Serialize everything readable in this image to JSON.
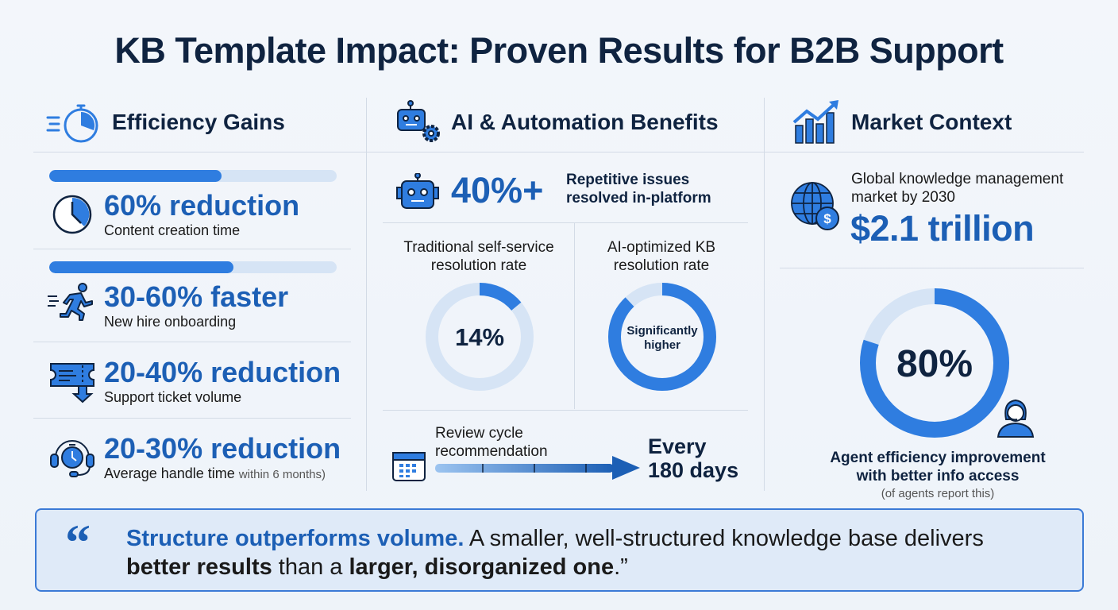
{
  "title": "KB Template Impact: Proven Results for B2B Support",
  "colors": {
    "accent": "#2f7de0",
    "accent_dark": "#1c5fb5",
    "track": "#d6e4f5",
    "text": "#0f2340"
  },
  "efficiency": {
    "title": "Efficiency Gains",
    "icon": "stopwatch-icon",
    "items": [
      {
        "value": "60% reduction",
        "label": "Content creation time",
        "icon": "clock-icon",
        "progress": 0.6
      },
      {
        "value": "30-60% faster",
        "label": "New hire onboarding",
        "icon": "running-person-icon",
        "progress": 0.64
      },
      {
        "value": "20-40% reduction",
        "label": "Support ticket volume",
        "icon": "ticket-down-icon"
      },
      {
        "value": "20-30% reduction",
        "label": "Average handle time",
        "note": "within 6 months)",
        "icon": "headset-timer-icon"
      }
    ]
  },
  "ai": {
    "title": "AI & Automation Benefits",
    "icon": "robot-gear-icon",
    "headline_value": "40%+",
    "headline_label_1": "Repetitive issues",
    "headline_label_2": "resolved in-platform",
    "traditional": {
      "label_1": "Traditional self-service",
      "label_2": "resolution rate",
      "value_text": "14%",
      "value": 0.14
    },
    "optimized": {
      "label_1": "AI-optimized KB",
      "label_2": "resolution rate",
      "center_1": "Significantly",
      "center_2": "higher",
      "value": 0.88
    },
    "review": {
      "label_1": "Review cycle",
      "label_2": "recommendation",
      "value_1": "Every",
      "value_2": "180 days",
      "icon": "calendar-icon"
    }
  },
  "market": {
    "title": "Market Context",
    "icon": "growth-chart-icon",
    "label_1": "Global knowledge management",
    "label_2": "market by 2030",
    "value": "$2.1 trillion",
    "value_icon": "globe-dollar-icon",
    "donut": {
      "value_text": "80%",
      "value": 0.8,
      "caption_1": "Agent efficiency improvement",
      "caption_2": "with better info access",
      "note": "(of agents report this)",
      "icon": "support-agent-icon"
    }
  },
  "quote": {
    "mark": "“",
    "bold_lead": "Structure outperforms volume.",
    "text_1": " A smaller, well-structured knowledge base delivers ",
    "bold_1": "better results",
    "text_2": " than a ",
    "bold_2": "larger, disorganized one",
    ".": ".",
    "end": ".”"
  }
}
